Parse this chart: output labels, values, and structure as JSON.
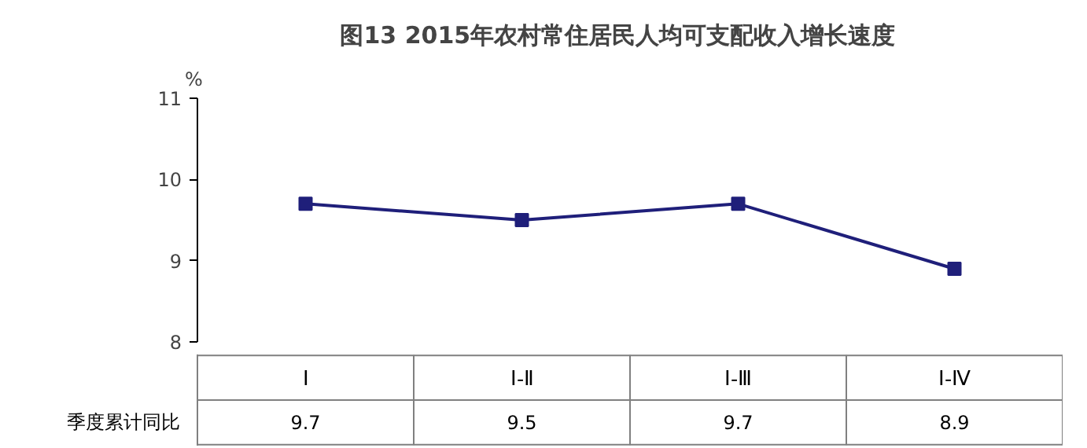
{
  "chart_data": {
    "type": "line",
    "title": "图13    2015年农村常住居民人均可支配收入增长速度",
    "ylabel": "%",
    "categories": [
      "Ⅰ",
      "Ⅰ-Ⅱ",
      "Ⅰ-Ⅲ",
      "Ⅰ-Ⅳ"
    ],
    "series": [
      {
        "name": "季度累计同比",
        "color": "#1f1f7a",
        "values": [
          9.7,
          9.5,
          9.7,
          8.9
        ]
      }
    ],
    "ylim": [
      8,
      11
    ],
    "yticks": [
      8,
      9,
      10,
      11
    ],
    "marker": "square",
    "line_style": "solid",
    "data_labels": true,
    "grid": false
  }
}
